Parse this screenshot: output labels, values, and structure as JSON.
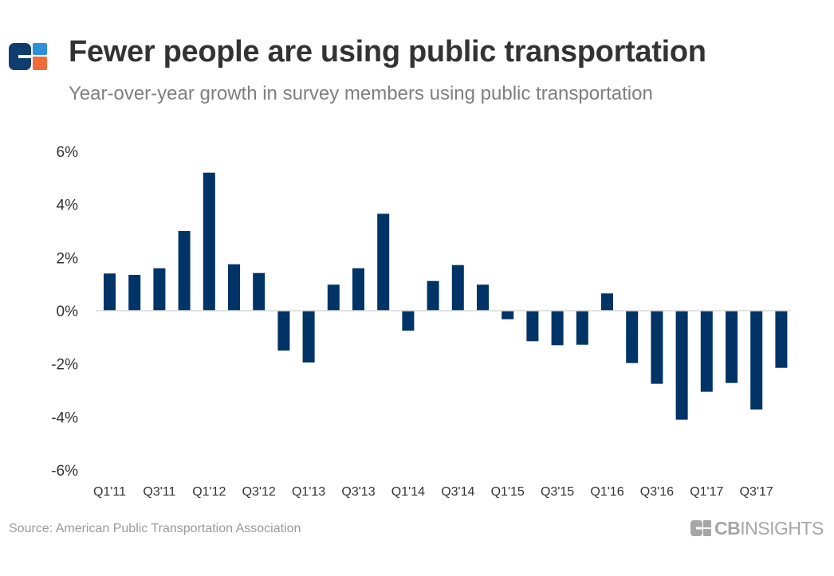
{
  "header": {
    "title": "Fewer people are using public transportation",
    "subtitle": "Year-over-year growth in survey members using public transportation"
  },
  "footer": {
    "source": "Source: American Public Transportation Association",
    "brand_bold": "CB",
    "brand_light": "INSIGHTS"
  },
  "colors": {
    "bar": "#003366",
    "logo_navy": "#0f3d6e",
    "logo_blue": "#2f8fd8",
    "logo_orange": "#f26b3a",
    "axis_text": "#333333",
    "baseline": "#d9d9d9"
  },
  "chart_data": {
    "type": "bar",
    "title": "Fewer people are using public transportation",
    "subtitle": "Year-over-year growth in survey members using public transportation",
    "categories": [
      "Q1'11",
      "Q2'11",
      "Q3'11",
      "Q4'11",
      "Q1'12",
      "Q2'12",
      "Q3'12",
      "Q4'12",
      "Q1'13",
      "Q2'13",
      "Q3'13",
      "Q4'13",
      "Q1'14",
      "Q2'14",
      "Q3'14",
      "Q4'14",
      "Q1'15",
      "Q2'15",
      "Q3'15",
      "Q4'15",
      "Q1'16",
      "Q2'16",
      "Q3'16",
      "Q4'16",
      "Q1'17",
      "Q2'17",
      "Q3'17",
      "Q4'17"
    ],
    "tick_labels": [
      "Q1'11",
      "Q3'11",
      "Q1'12",
      "Q3'12",
      "Q1'13",
      "Q3'13",
      "Q1'14",
      "Q3'14",
      "Q1'15",
      "Q3'15",
      "Q1'16",
      "Q3'16",
      "Q1'17",
      "Q3'17"
    ],
    "values": [
      1.4,
      1.35,
      1.6,
      3.0,
      5.2,
      1.75,
      1.42,
      -1.5,
      -1.95,
      0.98,
      1.6,
      3.65,
      -0.75,
      1.12,
      1.72,
      0.98,
      -0.32,
      -1.15,
      -1.3,
      -1.28,
      0.65,
      -1.97,
      -2.75,
      -4.1,
      -3.05,
      -2.72,
      -3.72,
      -2.15
    ],
    "y_ticks": [
      6,
      4,
      2,
      0,
      -2,
      -4,
      -6
    ],
    "y_tick_labels": [
      "6%",
      "4%",
      "2%",
      "0%",
      "-2%",
      "-4%",
      "-6%"
    ],
    "ylim": [
      -6,
      6
    ],
    "grid": false,
    "xlabel": "",
    "ylabel": ""
  }
}
